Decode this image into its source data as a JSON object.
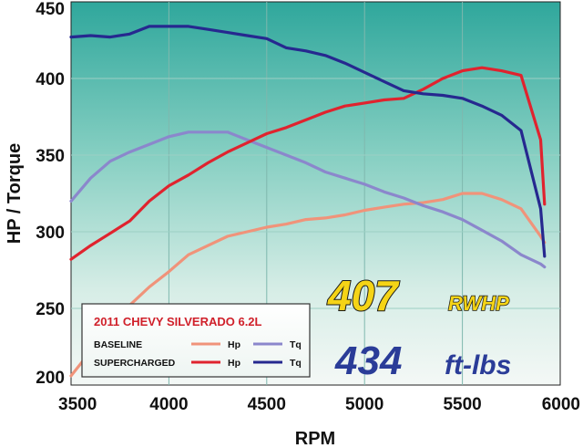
{
  "chart_data": {
    "type": "line",
    "xlabel": "RPM",
    "ylabel": "HP / Torque",
    "xlim": [
      3500,
      6000
    ],
    "ylim": [
      200,
      450
    ],
    "x_ticks": [
      3500,
      4000,
      4500,
      5000,
      5500,
      6000
    ],
    "y_ticks": [
      200,
      250,
      300,
      350,
      400,
      450
    ],
    "grid": true,
    "legend": {
      "title": "2011 CHEVY SILVERADO 6.2L",
      "rows": [
        {
          "group": "BASELINE",
          "hp_label": "Hp",
          "tq_label": "Tq"
        },
        {
          "group": "SUPERCHARGED",
          "hp_label": "Hp",
          "tq_label": "Tq"
        }
      ],
      "placement": "bottom-left"
    },
    "series": [
      {
        "name": "BASELINE Hp",
        "color": "#f0937a",
        "points": [
          [
            3500,
            206
          ],
          [
            3600,
            222
          ],
          [
            3700,
            239
          ],
          [
            3800,
            252
          ],
          [
            3900,
            264
          ],
          [
            4000,
            274
          ],
          [
            4100,
            285
          ],
          [
            4200,
            291
          ],
          [
            4300,
            297
          ],
          [
            4400,
            300
          ],
          [
            4500,
            303
          ],
          [
            4600,
            305
          ],
          [
            4700,
            308
          ],
          [
            4800,
            309
          ],
          [
            4900,
            311
          ],
          [
            5000,
            314
          ],
          [
            5100,
            316
          ],
          [
            5200,
            318
          ],
          [
            5300,
            319
          ],
          [
            5400,
            321
          ],
          [
            5500,
            325
          ],
          [
            5600,
            325
          ],
          [
            5700,
            321
          ],
          [
            5800,
            315
          ],
          [
            5900,
            297
          ],
          [
            5920,
            293
          ]
        ]
      },
      {
        "name": "BASELINE Tq",
        "color": "#8b87cc",
        "points": [
          [
            3500,
            320
          ],
          [
            3600,
            335
          ],
          [
            3700,
            346
          ],
          [
            3800,
            352
          ],
          [
            3900,
            357
          ],
          [
            4000,
            362
          ],
          [
            4100,
            365
          ],
          [
            4200,
            365
          ],
          [
            4300,
            365
          ],
          [
            4400,
            360
          ],
          [
            4500,
            355
          ],
          [
            4600,
            350
          ],
          [
            4700,
            345
          ],
          [
            4800,
            339
          ],
          [
            4900,
            335
          ],
          [
            5000,
            331
          ],
          [
            5100,
            326
          ],
          [
            5200,
            322
          ],
          [
            5300,
            317
          ],
          [
            5400,
            313
          ],
          [
            5500,
            308
          ],
          [
            5600,
            301
          ],
          [
            5700,
            294
          ],
          [
            5800,
            285
          ],
          [
            5900,
            279
          ],
          [
            5920,
            277
          ]
        ]
      },
      {
        "name": "SUPERCHARGED Hp",
        "color": "#e0232e",
        "points": [
          [
            3500,
            282
          ],
          [
            3600,
            291
          ],
          [
            3700,
            299
          ],
          [
            3800,
            307
          ],
          [
            3900,
            320
          ],
          [
            4000,
            330
          ],
          [
            4100,
            337
          ],
          [
            4200,
            345
          ],
          [
            4300,
            352
          ],
          [
            4400,
            358
          ],
          [
            4500,
            364
          ],
          [
            4600,
            368
          ],
          [
            4700,
            373
          ],
          [
            4800,
            378
          ],
          [
            4900,
            382
          ],
          [
            5000,
            384
          ],
          [
            5100,
            386
          ],
          [
            5200,
            387
          ],
          [
            5300,
            393
          ],
          [
            5400,
            400
          ],
          [
            5500,
            405
          ],
          [
            5600,
            407
          ],
          [
            5700,
            405
          ],
          [
            5800,
            402
          ],
          [
            5900,
            360
          ],
          [
            5920,
            318
          ]
        ]
      },
      {
        "name": "SUPERCHARGED Tq",
        "color": "#26288f",
        "points": [
          [
            3500,
            427
          ],
          [
            3600,
            428
          ],
          [
            3700,
            427
          ],
          [
            3800,
            429
          ],
          [
            3900,
            434
          ],
          [
            4000,
            434
          ],
          [
            4100,
            434
          ],
          [
            4200,
            432
          ],
          [
            4300,
            430
          ],
          [
            4400,
            428
          ],
          [
            4500,
            426
          ],
          [
            4600,
            420
          ],
          [
            4700,
            418
          ],
          [
            4800,
            415
          ],
          [
            4900,
            410
          ],
          [
            5000,
            404
          ],
          [
            5100,
            398
          ],
          [
            5200,
            392
          ],
          [
            5300,
            390
          ],
          [
            5400,
            389
          ],
          [
            5500,
            387
          ],
          [
            5600,
            382
          ],
          [
            5700,
            376
          ],
          [
            5800,
            366
          ],
          [
            5900,
            315
          ],
          [
            5920,
            284
          ]
        ]
      }
    ],
    "annotations": {
      "peak_hp_value": "407",
      "peak_hp_unit": "RWHP",
      "peak_tq_value": "434",
      "peak_tq_unit": "ft-lbs"
    }
  }
}
